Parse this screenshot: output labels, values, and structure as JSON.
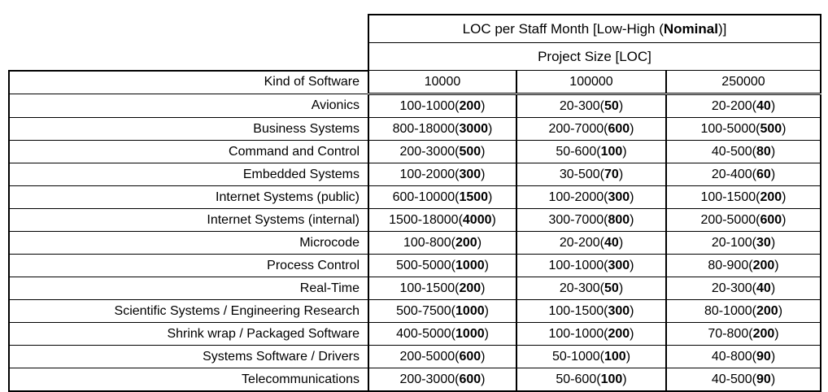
{
  "table": {
    "title": {
      "prefix": "LOC per Staff Month [Low-High (",
      "bold": "Nominal",
      "suffix": ")]"
    },
    "subtitle": "Project Size [LOC]",
    "kind_header": "Kind of Software",
    "size_columns": [
      "10000",
      "100000",
      "250000"
    ],
    "rows": [
      {
        "label": "Avionics",
        "cells": [
          {
            "range": "100-1000",
            "nominal": "200"
          },
          {
            "range": "20-300",
            "nominal": "50"
          },
          {
            "range": "20-200",
            "nominal": "40"
          }
        ]
      },
      {
        "label": "Business Systems",
        "cells": [
          {
            "range": "800-18000",
            "nominal": "3000"
          },
          {
            "range": "200-7000",
            "nominal": "600"
          },
          {
            "range": "100-5000",
            "nominal": "500"
          }
        ]
      },
      {
        "label": "Command and Control",
        "cells": [
          {
            "range": "200-3000",
            "nominal": "500"
          },
          {
            "range": "50-600",
            "nominal": "100"
          },
          {
            "range": "40-500",
            "nominal": "80"
          }
        ]
      },
      {
        "label": "Embedded Systems",
        "cells": [
          {
            "range": "100-2000",
            "nominal": "300"
          },
          {
            "range": "30-500",
            "nominal": "70"
          },
          {
            "range": "20-400",
            "nominal": "60"
          }
        ]
      },
      {
        "label": "Internet Systems (public)",
        "cells": [
          {
            "range": "600-10000",
            "nominal": "1500"
          },
          {
            "range": "100-2000",
            "nominal": "300"
          },
          {
            "range": "100-1500",
            "nominal": "200"
          }
        ]
      },
      {
        "label": "Internet Systems (internal)",
        "cells": [
          {
            "range": "1500-18000",
            "nominal": "4000"
          },
          {
            "range": "300-7000",
            "nominal": "800"
          },
          {
            "range": "200-5000",
            "nominal": "600"
          }
        ]
      },
      {
        "label": "Microcode",
        "cells": [
          {
            "range": "100-800",
            "nominal": "200"
          },
          {
            "range": "20-200",
            "nominal": "40"
          },
          {
            "range": "20-100",
            "nominal": "30"
          }
        ]
      },
      {
        "label": "Process Control",
        "cells": [
          {
            "range": "500-5000",
            "nominal": "1000"
          },
          {
            "range": "100-1000",
            "nominal": "300"
          },
          {
            "range": "80-900",
            "nominal": "200"
          }
        ]
      },
      {
        "label": "Real-Time",
        "cells": [
          {
            "range": "100-1500",
            "nominal": "200"
          },
          {
            "range": "20-300",
            "nominal": "50"
          },
          {
            "range": "20-300",
            "nominal": "40"
          }
        ]
      },
      {
        "label": "Scientific Systems / Engineering Research",
        "cells": [
          {
            "range": "500-7500",
            "nominal": "1000"
          },
          {
            "range": "100-1500",
            "nominal": "300"
          },
          {
            "range": "80-1000",
            "nominal": "200"
          }
        ]
      },
      {
        "label": "Shrink wrap / Packaged Software",
        "cells": [
          {
            "range": "400-5000",
            "nominal": "1000"
          },
          {
            "range": "100-1000",
            "nominal": "200"
          },
          {
            "range": "70-800",
            "nominal": "200"
          }
        ]
      },
      {
        "label": "Systems Software / Drivers",
        "cells": [
          {
            "range": "200-5000",
            "nominal": "600"
          },
          {
            "range": "50-1000",
            "nominal": "100"
          },
          {
            "range": "40-800",
            "nominal": "90"
          }
        ]
      },
      {
        "label": "Telecommunications",
        "cells": [
          {
            "range": "200-3000",
            "nominal": "600"
          },
          {
            "range": "50-600",
            "nominal": "100"
          },
          {
            "range": "40-500",
            "nominal": "90"
          }
        ]
      }
    ]
  }
}
